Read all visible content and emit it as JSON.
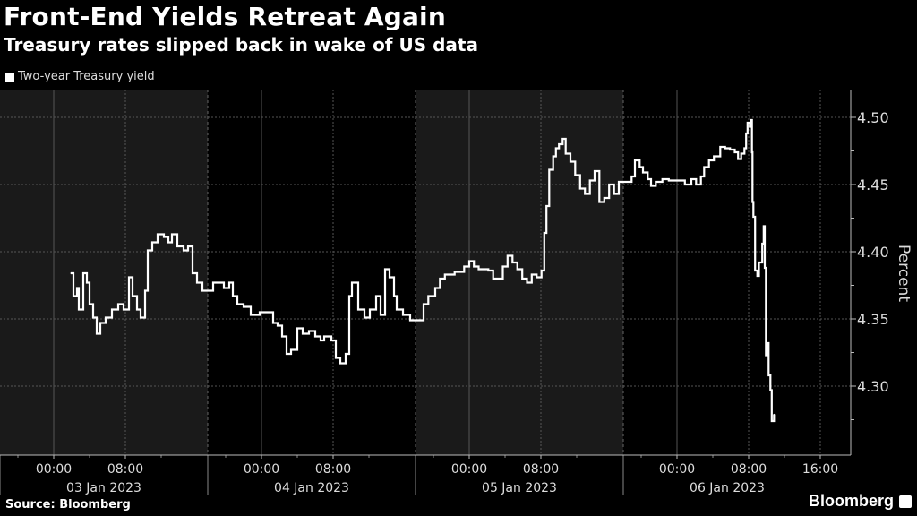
{
  "header": {
    "title": "Front-End Yields Retreat Again",
    "subtitle": "Treasury rates slipped back in wake of US data"
  },
  "footer": {
    "source": "Source: Bloomberg",
    "logo": "Bloomberg"
  },
  "colors": {
    "background": "#000000",
    "shaded_band": "#1a1a1a",
    "line": "#ffffff",
    "grid": "#555555"
  },
  "chart_data": {
    "type": "line",
    "title": "Front-End Yields Retreat Again",
    "subtitle": "Treasury rates slipped back in wake of US data",
    "ylabel": "Percent",
    "ylim": [
      4.26,
      4.52
    ],
    "yticks": [
      "4.50",
      "4.45",
      "4.40",
      "4.35",
      "4.30"
    ],
    "xticks": [
      {
        "t": "2023-01-03 00:00",
        "label": "00:00"
      },
      {
        "t": "2023-01-03 08:00",
        "label": "08:00"
      },
      {
        "t": "2023-01-04 00:00",
        "label": "00:00"
      },
      {
        "t": "2023-01-04 08:00",
        "label": "08:00"
      },
      {
        "t": "2023-01-05 00:00",
        "label": "00:00"
      },
      {
        "t": "2023-01-05 08:00",
        "label": "08:00"
      },
      {
        "t": "2023-01-06 00:00",
        "label": "00:00"
      },
      {
        "t": "2023-01-06 08:00",
        "label": "08:00"
      },
      {
        "t": "2023-01-06 16:00",
        "label": "16:00"
      }
    ],
    "day_labels": [
      "03 Jan 2023",
      "04 Jan 2023",
      "05 Jan 2023",
      "06 Jan 2023"
    ],
    "grid": true,
    "legend_position": "top-left",
    "series": [
      {
        "name": "Two-year Treasury yield",
        "points": [
          [
            "2023-01-03 01:54",
            4.384
          ],
          [
            "2023-01-03 02:12",
            4.367
          ],
          [
            "2023-01-03 02:36",
            4.373
          ],
          [
            "2023-01-03 02:48",
            4.357
          ],
          [
            "2023-01-03 03:18",
            4.384
          ],
          [
            "2023-01-03 03:42",
            4.377
          ],
          [
            "2023-01-03 04:00",
            4.361
          ],
          [
            "2023-01-03 04:24",
            4.351
          ],
          [
            "2023-01-03 04:48",
            4.339
          ],
          [
            "2023-01-03 05:12",
            4.347
          ],
          [
            "2023-01-03 05:48",
            4.351
          ],
          [
            "2023-01-03 06:30",
            4.357
          ],
          [
            "2023-01-03 07:12",
            4.361
          ],
          [
            "2023-01-03 07:48",
            4.357
          ],
          [
            "2023-01-03 08:24",
            4.381
          ],
          [
            "2023-01-03 08:48",
            4.367
          ],
          [
            "2023-01-03 09:18",
            4.357
          ],
          [
            "2023-01-03 09:42",
            4.351
          ],
          [
            "2023-01-03 10:12",
            4.371
          ],
          [
            "2023-01-03 10:30",
            4.401
          ],
          [
            "2023-01-03 11:00",
            4.407
          ],
          [
            "2023-01-03 11:36",
            4.413
          ],
          [
            "2023-01-03 12:18",
            4.411
          ],
          [
            "2023-01-03 12:48",
            4.407
          ],
          [
            "2023-01-03 13:12",
            4.413
          ],
          [
            "2023-01-03 13:48",
            4.404
          ],
          [
            "2023-01-03 14:30",
            4.401
          ],
          [
            "2023-01-03 15:00",
            4.404
          ],
          [
            "2023-01-03 15:30",
            4.384
          ],
          [
            "2023-01-03 16:00",
            4.377
          ],
          [
            "2023-01-03 16:36",
            4.371
          ],
          [
            "2023-01-03 18:36",
            4.377
          ],
          [
            "2023-01-03 19:48",
            4.373
          ],
          [
            "2023-01-03 20:24",
            4.377
          ],
          [
            "2023-01-03 20:48",
            4.367
          ],
          [
            "2023-01-03 21:18",
            4.361
          ],
          [
            "2023-01-03 22:00",
            4.359
          ],
          [
            "2023-01-03 22:48",
            4.353
          ],
          [
            "2023-01-03 23:48",
            4.355
          ],
          [
            "2023-01-04 00:48",
            4.355
          ],
          [
            "2023-01-04 01:18",
            4.347
          ],
          [
            "2023-01-04 01:48",
            4.345
          ],
          [
            "2023-01-04 02:18",
            4.337
          ],
          [
            "2023-01-04 02:48",
            4.324
          ],
          [
            "2023-01-04 03:18",
            4.327
          ],
          [
            "2023-01-04 04:00",
            4.343
          ],
          [
            "2023-01-04 04:36",
            4.339
          ],
          [
            "2023-01-04 05:18",
            4.341
          ],
          [
            "2023-01-04 06:00",
            4.337
          ],
          [
            "2023-01-04 06:36",
            4.334
          ],
          [
            "2023-01-04 07:00",
            4.337
          ],
          [
            "2023-01-04 07:48",
            4.334
          ],
          [
            "2023-01-04 08:18",
            4.321
          ],
          [
            "2023-01-04 08:48",
            4.317
          ],
          [
            "2023-01-04 09:24",
            4.324
          ],
          [
            "2023-01-04 09:48",
            4.367
          ],
          [
            "2023-01-04 10:06",
            4.377
          ],
          [
            "2023-01-04 10:48",
            4.357
          ],
          [
            "2023-01-04 11:30",
            4.351
          ],
          [
            "2023-01-04 12:06",
            4.357
          ],
          [
            "2023-01-04 12:48",
            4.367
          ],
          [
            "2023-01-04 13:18",
            4.353
          ],
          [
            "2023-01-04 13:48",
            4.387
          ],
          [
            "2023-01-04 14:18",
            4.381
          ],
          [
            "2023-01-04 14:48",
            4.367
          ],
          [
            "2023-01-04 15:06",
            4.357
          ],
          [
            "2023-01-04 15:48",
            4.353
          ],
          [
            "2023-01-04 16:36",
            4.349
          ],
          [
            "2023-01-04 18:54",
            4.361
          ],
          [
            "2023-01-04 19:26",
            4.367
          ],
          [
            "2023-01-04 20:12",
            4.373
          ],
          [
            "2023-01-04 20:44",
            4.38
          ],
          [
            "2023-01-04 21:17",
            4.383
          ],
          [
            "2023-01-04 22:22",
            4.385
          ],
          [
            "2023-01-04 23:26",
            4.389
          ],
          [
            "2023-01-05 00:00",
            4.393
          ],
          [
            "2023-01-05 00:31",
            4.389
          ],
          [
            "2023-01-05 01:03",
            4.387
          ],
          [
            "2023-01-05 01:35",
            4.387
          ],
          [
            "2023-01-05 02:08",
            4.386
          ],
          [
            "2023-01-05 02:40",
            4.38
          ],
          [
            "2023-01-05 03:13",
            4.38
          ],
          [
            "2023-01-05 03:45",
            4.389
          ],
          [
            "2023-01-05 04:17",
            4.397
          ],
          [
            "2023-01-05 04:50",
            4.392
          ],
          [
            "2023-01-05 05:22",
            4.387
          ],
          [
            "2023-01-05 05:55",
            4.38
          ],
          [
            "2023-01-05 06:27",
            4.377
          ],
          [
            "2023-01-05 06:59",
            4.383
          ],
          [
            "2023-01-05 07:32",
            4.381
          ],
          [
            "2023-01-05 08:04",
            4.386
          ],
          [
            "2023-01-05 08:23",
            4.414
          ],
          [
            "2023-01-05 08:37",
            4.434
          ],
          [
            "2023-01-05 08:56",
            4.461
          ],
          [
            "2023-01-05 09:22",
            4.471
          ],
          [
            "2023-01-05 09:41",
            4.477
          ],
          [
            "2023-01-05 10:01",
            4.48
          ],
          [
            "2023-01-05 10:26",
            4.484
          ],
          [
            "2023-01-05 10:46",
            4.473
          ],
          [
            "2023-01-05 11:18",
            4.467
          ],
          [
            "2023-01-05 11:50",
            4.457
          ],
          [
            "2023-01-05 12:23",
            4.447
          ],
          [
            "2023-01-05 12:55",
            4.443
          ],
          [
            "2023-01-05 13:28",
            4.453
          ],
          [
            "2023-01-05 14:00",
            4.46
          ],
          [
            "2023-01-05 14:32",
            4.437
          ],
          [
            "2023-01-05 15:05",
            4.44
          ],
          [
            "2023-01-05 15:37",
            4.45
          ],
          [
            "2023-01-05 16:10",
            4.443
          ],
          [
            "2023-01-05 16:42",
            4.452
          ],
          [
            "2023-01-05 18:56",
            4.456
          ],
          [
            "2023-01-05 19:18",
            4.468
          ],
          [
            "2023-01-05 19:50",
            4.463
          ],
          [
            "2023-01-05 20:12",
            4.459
          ],
          [
            "2023-01-05 20:44",
            4.454
          ],
          [
            "2023-01-05 21:06",
            4.449
          ],
          [
            "2023-01-05 21:38",
            4.452
          ],
          [
            "2023-01-05 22:22",
            4.454
          ],
          [
            "2023-01-05 23:05",
            4.453
          ],
          [
            "2023-01-06 00:10",
            4.453
          ],
          [
            "2023-01-06 00:53",
            4.45
          ],
          [
            "2023-01-06 01:36",
            4.454
          ],
          [
            "2023-01-06 02:08",
            4.45
          ],
          [
            "2023-01-06 02:40",
            4.456
          ],
          [
            "2023-01-06 03:02",
            4.463
          ],
          [
            "2023-01-06 03:34",
            4.468
          ],
          [
            "2023-01-06 04:07",
            4.471
          ],
          [
            "2023-01-06 04:50",
            4.478
          ],
          [
            "2023-01-06 05:22",
            4.477
          ],
          [
            "2023-01-06 05:55",
            4.476
          ],
          [
            "2023-01-06 06:27",
            4.474
          ],
          [
            "2023-01-06 06:49",
            4.469
          ],
          [
            "2023-01-06 07:10",
            4.473
          ],
          [
            "2023-01-06 07:32",
            4.477
          ],
          [
            "2023-01-06 07:43",
            4.488
          ],
          [
            "2023-01-06 07:53",
            4.496
          ],
          [
            "2023-01-06 08:08",
            4.493
          ],
          [
            "2023-01-06 08:17",
            4.498
          ],
          [
            "2023-01-06 08:22",
            4.474
          ],
          [
            "2023-01-06 08:26",
            4.437
          ],
          [
            "2023-01-06 08:32",
            4.426
          ],
          [
            "2023-01-06 08:43",
            4.386
          ],
          [
            "2023-01-06 08:58",
            4.382
          ],
          [
            "2023-01-06 09:09",
            4.392
          ],
          [
            "2023-01-06 09:31",
            4.406
          ],
          [
            "2023-01-06 09:41",
            4.419
          ],
          [
            "2023-01-06 09:48",
            4.388
          ],
          [
            "2023-01-06 09:56",
            4.323
          ],
          [
            "2023-01-06 10:05",
            4.332
          ],
          [
            "2023-01-06 10:14",
            4.308
          ],
          [
            "2023-01-06 10:26",
            4.297
          ],
          [
            "2023-01-06 10:35",
            4.274
          ],
          [
            "2023-01-06 10:50",
            4.279
          ]
        ]
      }
    ]
  }
}
